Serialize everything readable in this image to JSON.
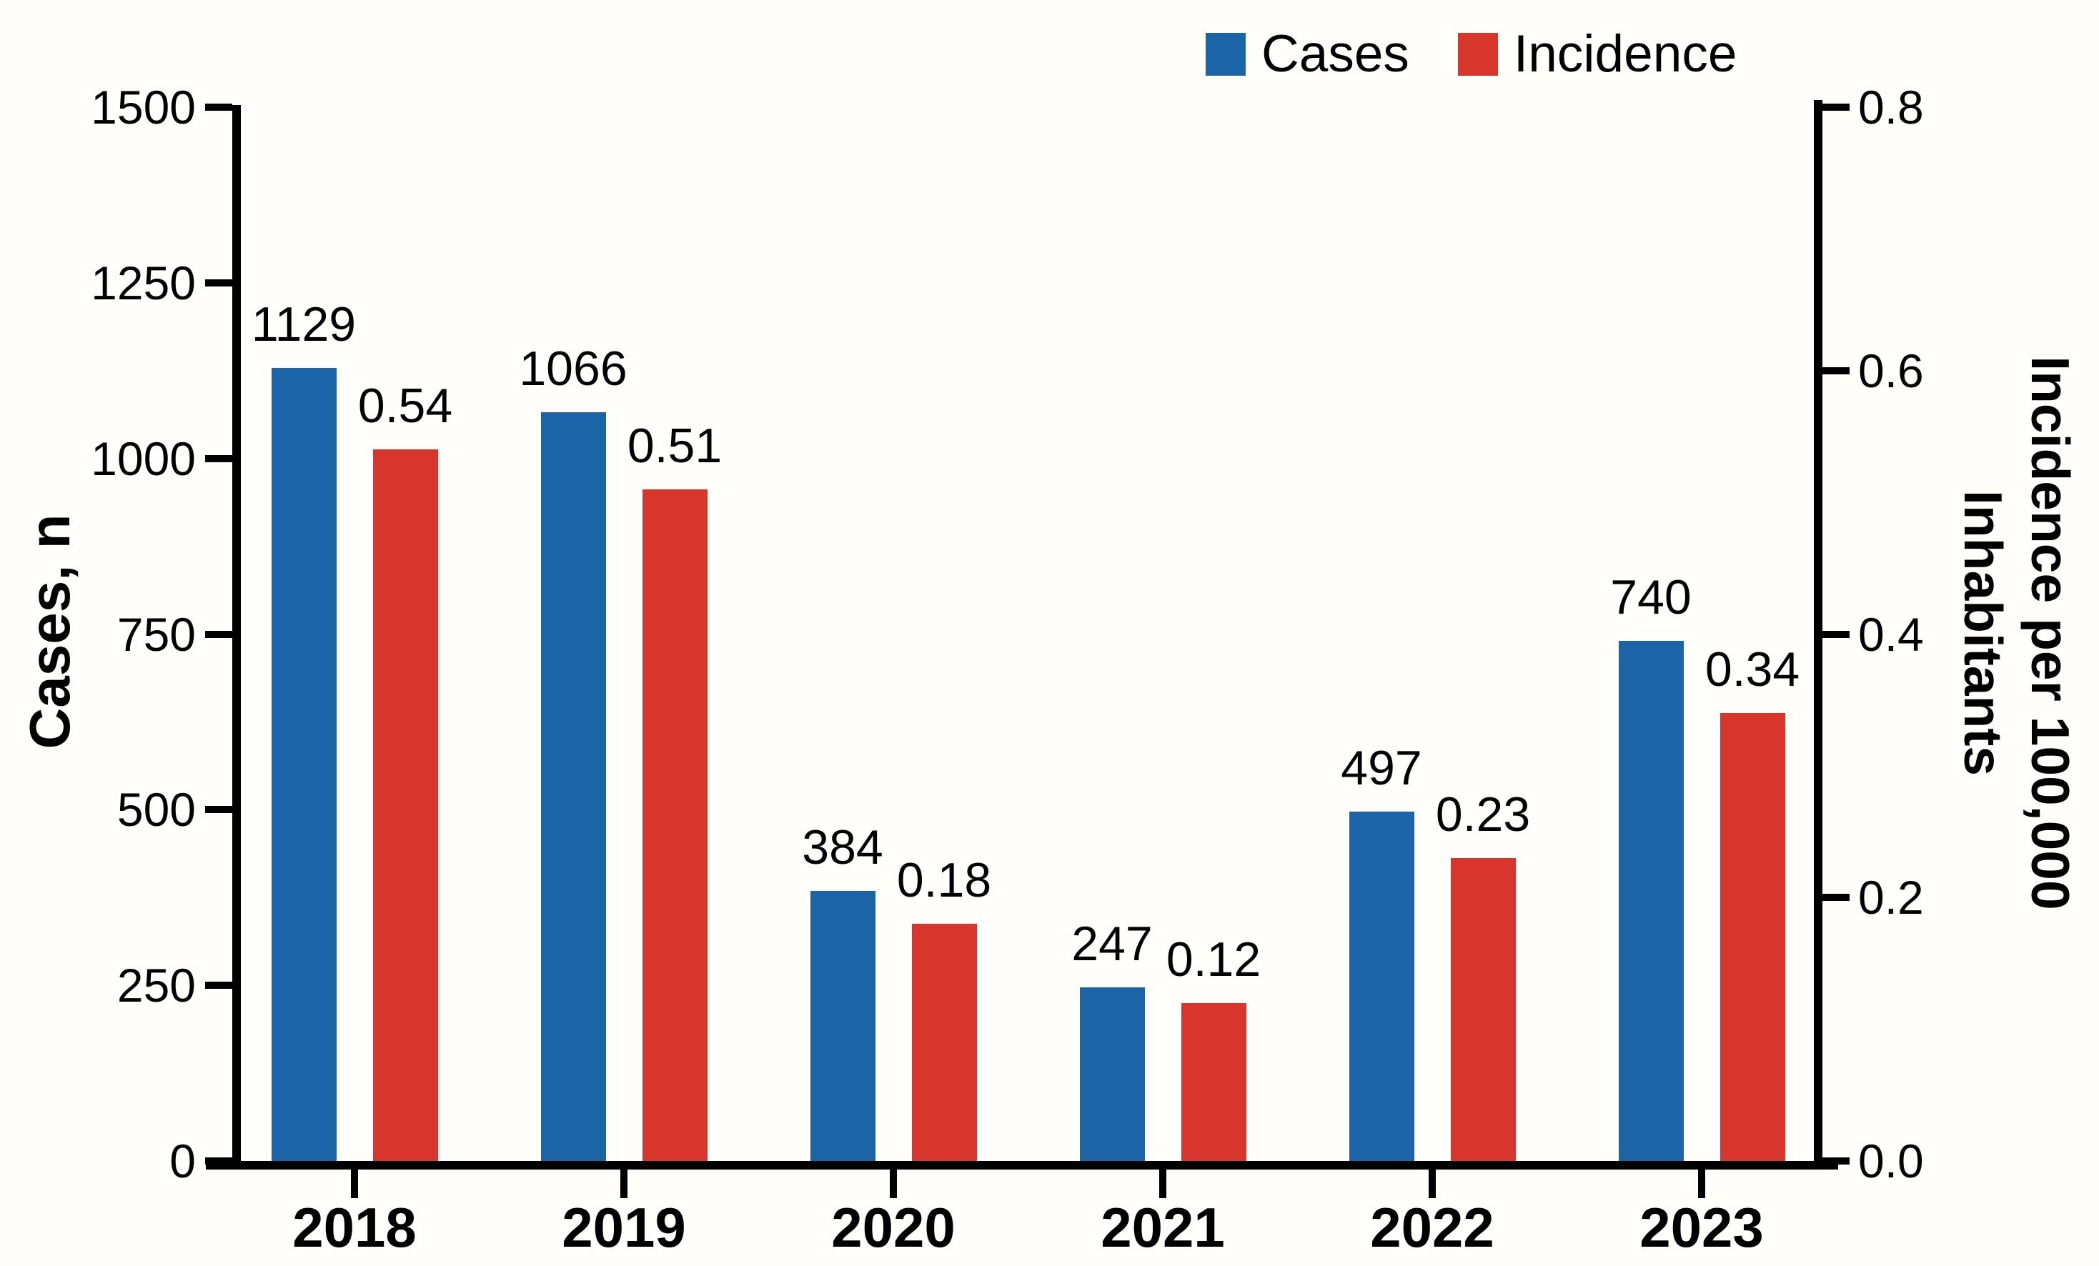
{
  "chart_data": {
    "type": "bar",
    "title": "",
    "categories": [
      "2018",
      "2019",
      "2020",
      "2021",
      "2022",
      "2023"
    ],
    "series": [
      {
        "name": "Cases",
        "axis": "left",
        "color": "#1B64A8",
        "values": [
          1129,
          1066,
          384,
          247,
          497,
          740
        ],
        "value_labels": [
          "1129",
          "1066",
          "384",
          "247",
          "497",
          "740"
        ]
      },
      {
        "name": "Incidence",
        "axis": "right",
        "color": "#D8352C",
        "values": [
          0.54,
          0.51,
          0.18,
          0.12,
          0.23,
          0.34
        ],
        "value_labels": [
          "0.54",
          "0.51",
          "0.18",
          "0.12",
          "0.23",
          "0.34"
        ]
      }
    ],
    "left_axis": {
      "title": "Cases, n",
      "min": 0,
      "max": 1500,
      "step": 250,
      "tick_labels": [
        "0",
        "250",
        "500",
        "750",
        "1000",
        "1250",
        "1500"
      ]
    },
    "right_axis": {
      "title_line1": "Incidence per 100,000",
      "title_line2": "Inhabitants",
      "min": 0,
      "max": 0.8,
      "step": 0.2,
      "tick_labels": [
        "0.0",
        "0.2",
        "0.4",
        "0.6",
        "0.8"
      ]
    },
    "legend": {
      "position": "top",
      "items": [
        {
          "label": "Cases",
          "color": "#1B64A8"
        },
        {
          "label": "Incidence",
          "color": "#D8352C"
        }
      ]
    },
    "grid": false
  },
  "colors": {
    "background": "#FFFEFB",
    "axis": "#000000",
    "text": "#000000"
  }
}
